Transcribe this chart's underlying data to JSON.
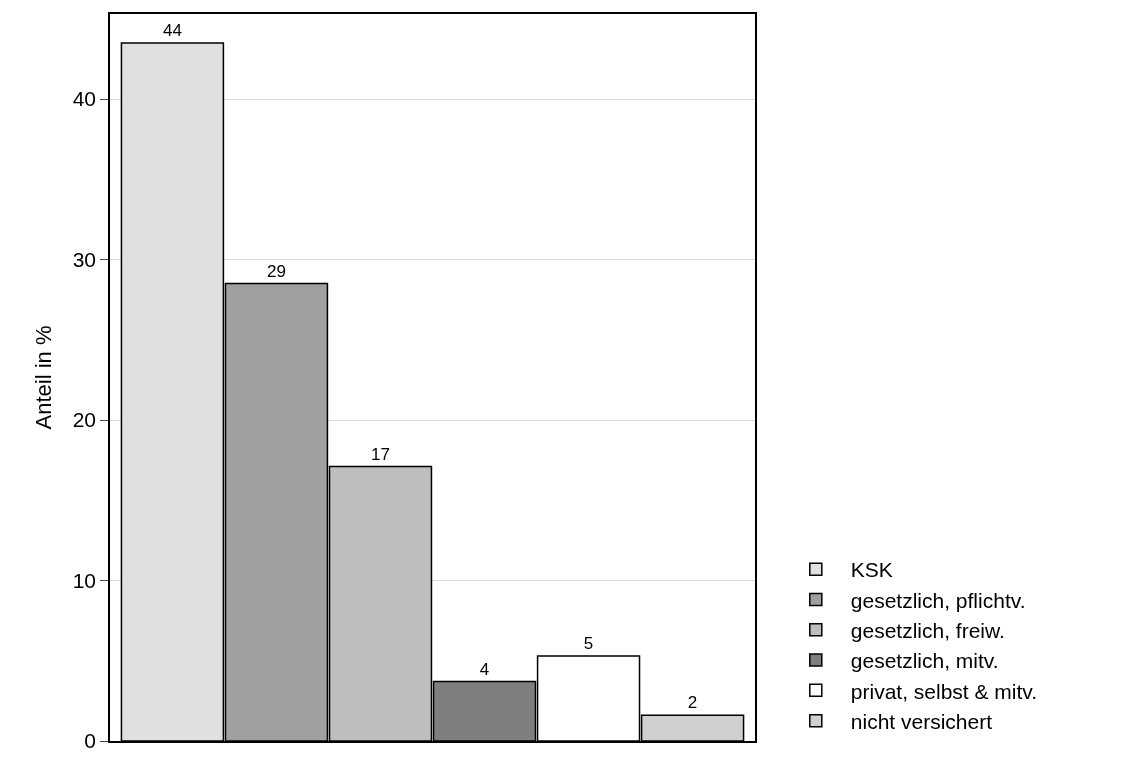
{
  "chart_data": {
    "type": "bar",
    "ylabel": "Anteil in %",
    "categories": [
      null,
      null,
      null,
      null,
      null,
      null
    ],
    "series": [
      {
        "name": "KSK",
        "color": "#e0e0e0",
        "values": [
          43.5,
          null,
          null,
          null,
          null,
          null
        ],
        "value_labels": [
          "44",
          null,
          null,
          null,
          null,
          null
        ]
      },
      {
        "name": "gesetzlich, pflichtv.",
        "color": "#a0a0a0",
        "values": [
          null,
          28.5,
          null,
          null,
          null,
          null
        ],
        "value_labels": [
          null,
          "29",
          null,
          null,
          null,
          null
        ]
      },
      {
        "name": "gesetzlich, freiw.",
        "color": "#bebebe",
        "values": [
          null,
          null,
          17.1,
          null,
          null,
          null
        ],
        "value_labels": [
          null,
          null,
          "17",
          null,
          null,
          null
        ]
      },
      {
        "name": "gesetzlich, mitv.",
        "color": "#7f7f7f",
        "values": [
          null,
          null,
          null,
          3.7,
          null,
          null
        ],
        "value_labels": [
          null,
          null,
          null,
          "4",
          null,
          null
        ]
      },
      {
        "name": "privat, selbst & mitv.",
        "color": "#ffffff",
        "values": [
          null,
          null,
          null,
          null,
          5.3,
          null
        ],
        "value_labels": [
          null,
          null,
          null,
          null,
          "5",
          null
        ]
      },
      {
        "name": "nicht versichert",
        "color": "#d0d0d0",
        "values": [
          null,
          null,
          null,
          null,
          null,
          1.6
        ],
        "value_labels": [
          null,
          null,
          null,
          null,
          null,
          "2"
        ]
      }
    ],
    "ylim": [
      0,
      45.3
    ],
    "yticks": [
      0,
      10,
      20,
      30,
      40
    ],
    "grid": "y",
    "legend": "bottom right",
    "tick_labels": "y"
  }
}
